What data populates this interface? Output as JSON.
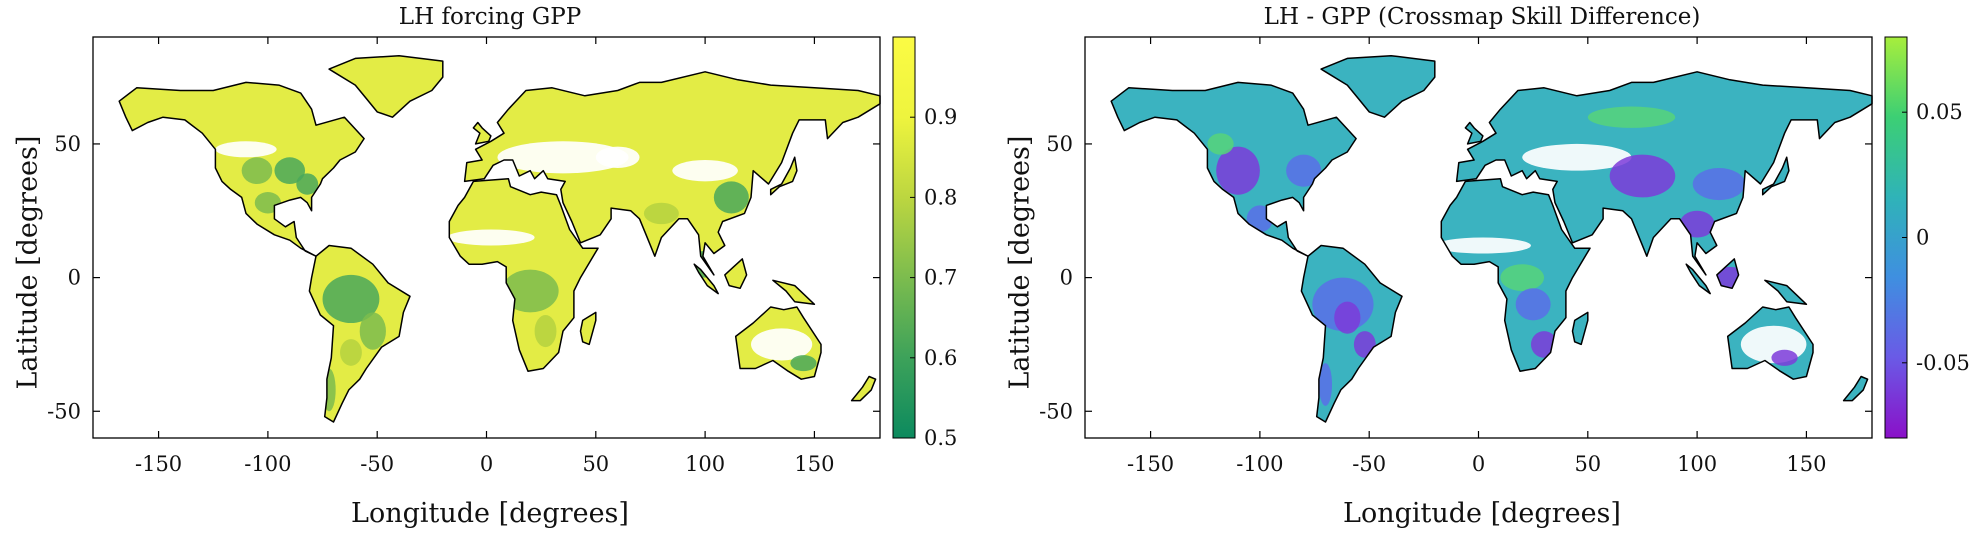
{
  "panels": [
    {
      "title": "LH forcing GPP",
      "xlabel": "Longitude [degrees]",
      "ylabel": "Latitude [degrees]",
      "colorbar": {
        "ticks": [
          "0.5",
          "0.6",
          "0.7",
          "0.8",
          "0.9"
        ],
        "tick_values": [
          0.5,
          0.6,
          0.7,
          0.8,
          0.9
        ],
        "range": [
          0.5,
          1.0
        ],
        "colors": [
          "#0c8a5e",
          "#3da25a",
          "#7cbc4e",
          "#bcd640",
          "#eef43e",
          "#fbfb44"
        ]
      },
      "land_color": "#e3ec45",
      "patch_colors": [
        "#4aa85a",
        "#7cbc4e",
        "#b5d23f",
        "#ffffff"
      ]
    },
    {
      "title": "LH - GPP (Crossmap Skill Difference)",
      "xlabel": "Longitude [degrees]",
      "ylabel": "Latitude [degrees]",
      "colorbar": {
        "ticks": [
          "-0.05",
          "0",
          "0.05"
        ],
        "tick_values": [
          -0.05,
          0,
          0.05
        ],
        "range": [
          -0.08,
          0.08
        ],
        "colors": [
          "#8a10c8",
          "#6a5ae6",
          "#3f8fe0",
          "#2fb3b8",
          "#3ccf74",
          "#a7ee3c"
        ]
      },
      "land_color": "#3bb3c0",
      "patch_colors": [
        "#7d3bd9",
        "#5b6ee8",
        "#57d47a",
        "#ffffff"
      ]
    }
  ],
  "axes": {
    "xticks": [
      "-150",
      "-100",
      "-50",
      "0",
      "50",
      "100",
      "150"
    ],
    "xtick_values": [
      -150,
      -100,
      -50,
      0,
      50,
      100,
      150
    ],
    "yticks": [
      "-50",
      "0",
      "50"
    ],
    "ytick_values": [
      -50,
      0,
      50
    ],
    "xlim": [
      -180,
      180
    ],
    "ylim": [
      -60,
      90
    ]
  }
}
